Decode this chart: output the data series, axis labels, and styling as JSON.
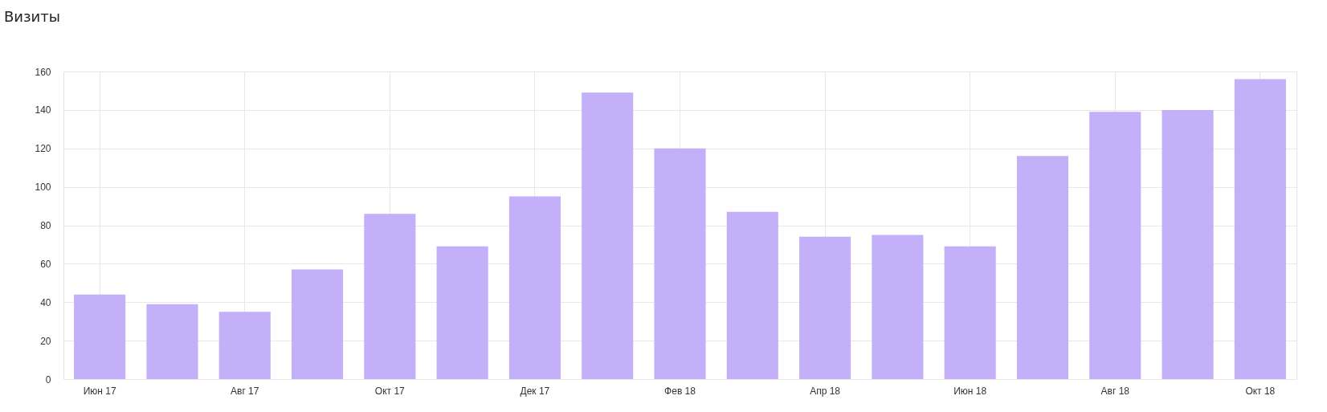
{
  "chart_data": {
    "type": "bar",
    "title": "Визиты",
    "categories": [
      "Июн 17",
      null,
      "Авг 17",
      null,
      "Окт 17",
      null,
      "Дек 17",
      null,
      "Фев 18",
      null,
      "Апр 18",
      null,
      "Июн 18",
      null,
      "Авг 18",
      null,
      "Окт 18"
    ],
    "values": [
      44,
      39,
      35,
      57,
      86,
      69,
      95,
      149,
      120,
      87,
      74,
      75,
      69,
      116,
      139,
      140,
      156
    ],
    "color": "#c3b0f9",
    "ylim": [
      0,
      160
    ],
    "yticks": [
      0,
      20,
      40,
      60,
      80,
      100,
      120,
      140,
      160
    ],
    "grid": true
  }
}
